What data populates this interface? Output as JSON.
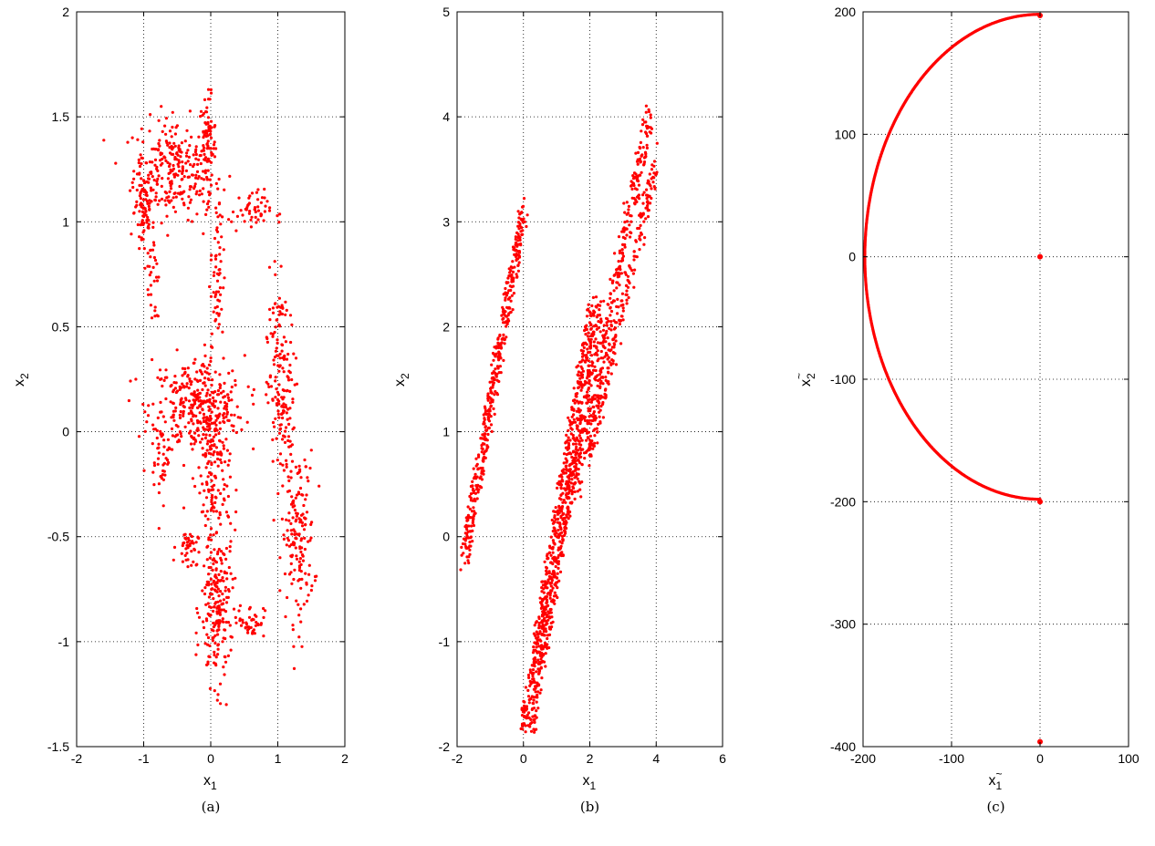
{
  "chart_data": [
    {
      "type": "scatter",
      "caption": "(a)",
      "xlabel": "x",
      "xlabel_sub": "1",
      "ylabel": "x",
      "ylabel_sub": "2",
      "xlim": [
        -2,
        2
      ],
      "ylim": [
        -1.5,
        2
      ],
      "xticks": [
        -2,
        -1,
        0,
        1,
        2
      ],
      "yticks": [
        -1.5,
        -1,
        -0.5,
        0,
        0.5,
        1,
        1.5,
        2
      ],
      "grid": true,
      "marker_color": "#ff0000",
      "clusters": [
        {
          "x": -0.55,
          "y": 1.25,
          "sx": 0.3,
          "sy": 0.12,
          "n": 260
        },
        {
          "x": -0.05,
          "y": 1.35,
          "sx": 0.06,
          "sy": 0.12,
          "n": 80
        },
        {
          "x": -1.0,
          "y": 1.05,
          "sx": 0.07,
          "sy": 0.12,
          "n": 80
        },
        {
          "x": -0.2,
          "y": 0.12,
          "sx": 0.35,
          "sy": 0.12,
          "n": 320
        },
        {
          "x": 1.05,
          "y": 0.15,
          "sx": 0.1,
          "sy": 0.2,
          "n": 140
        },
        {
          "x": 1.3,
          "y": -0.5,
          "sx": 0.12,
          "sy": 0.2,
          "n": 160
        },
        {
          "x": 0.05,
          "y": -0.2,
          "sx": 0.12,
          "sy": 0.25,
          "n": 180
        },
        {
          "x": 0.1,
          "y": -0.85,
          "sx": 0.12,
          "sy": 0.18,
          "n": 200
        },
        {
          "x": 0.6,
          "y": -0.9,
          "sx": 0.1,
          "sy": 0.04,
          "n": 40
        },
        {
          "x": -0.35,
          "y": -0.55,
          "sx": 0.08,
          "sy": 0.04,
          "n": 40
        },
        {
          "x": 0.6,
          "y": 1.05,
          "sx": 0.15,
          "sy": 0.05,
          "n": 50
        },
        {
          "x": 0.1,
          "y": 0.75,
          "sx": 0.05,
          "sy": 0.2,
          "n": 60
        },
        {
          "x": 1.0,
          "y": 0.6,
          "sx": 0.05,
          "sy": 0.1,
          "n": 30
        },
        {
          "x": -0.75,
          "y": -0.1,
          "sx": 0.06,
          "sy": 0.15,
          "n": 40
        },
        {
          "x": -0.85,
          "y": 0.7,
          "sx": 0.05,
          "sy": 0.15,
          "n": 30
        }
      ]
    },
    {
      "type": "scatter",
      "caption": "(b)",
      "xlabel": "x",
      "xlabel_sub": "1",
      "ylabel": "x",
      "ylabel_sub": "2",
      "xlim": [
        -2,
        6
      ],
      "ylim": [
        -2,
        5
      ],
      "xticks": [
        -2,
        0,
        2,
        4,
        6
      ],
      "yticks": [
        -2,
        -1,
        0,
        1,
        2,
        3,
        4,
        5
      ],
      "grid": true,
      "marker_color": "#ff0000",
      "bands": [
        {
          "x0": -1.8,
          "y0": -0.2,
          "x1": 0.0,
          "y1": 3.1,
          "width": 0.25,
          "n": 420
        },
        {
          "x0": 0.1,
          "y0": -1.8,
          "x1": 2.2,
          "y1": 2.2,
          "width": 0.45,
          "n": 900
        },
        {
          "x0": 1.6,
          "y0": 0.5,
          "x1": 3.8,
          "y1": 4.0,
          "width": 0.25,
          "n": 300
        },
        {
          "x0": 2.0,
          "y0": 0.8,
          "x1": 4.0,
          "y1": 3.6,
          "width": 0.2,
          "n": 220
        }
      ]
    },
    {
      "type": "scatter",
      "caption": "(c)",
      "xlabel": "x",
      "xlabel_sub": "1",
      "ylabel": "x",
      "ylabel_sub": "2",
      "tilde": "~",
      "xlim": [
        -200,
        100
      ],
      "ylim": [
        -400,
        200
      ],
      "xticks": [
        -200,
        -100,
        0,
        100
      ],
      "yticks": [
        -400,
        -300,
        -200,
        -100,
        0,
        100,
        200
      ],
      "grid": true,
      "marker_color": "#ff0000",
      "arc": {
        "cx": 0,
        "cy": 0,
        "r": 198,
        "from_deg": 90,
        "to_deg": 270,
        "n": 700
      },
      "points": [
        {
          "x": 0,
          "y": 0
        },
        {
          "x": 0,
          "y": -200
        },
        {
          "x": 0,
          "y": -396
        },
        {
          "x": 0,
          "y": 197
        }
      ]
    }
  ]
}
